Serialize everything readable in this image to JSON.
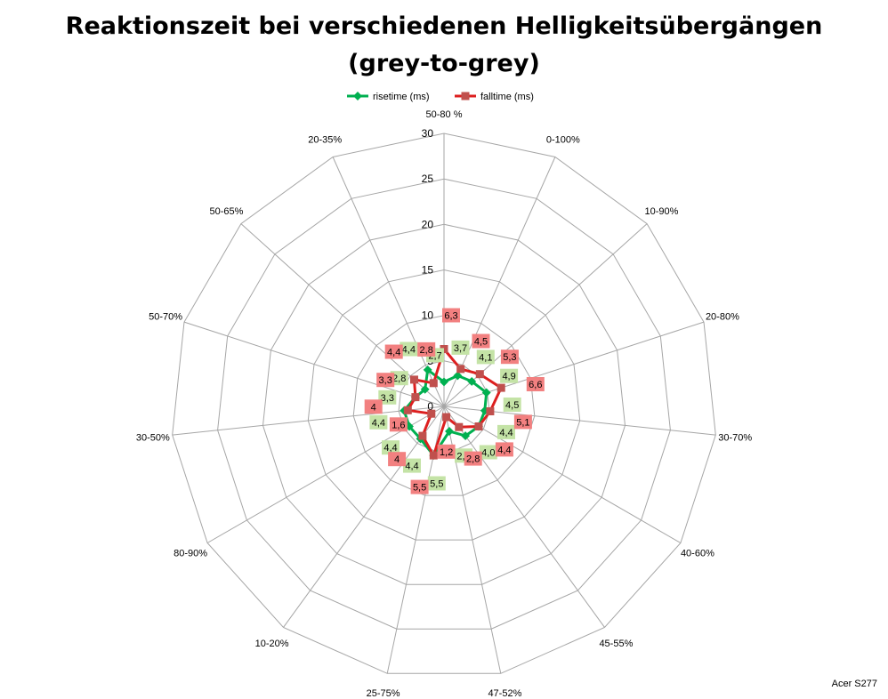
{
  "chart_data": {
    "type": "radar",
    "title": "Reaktionszeit bei verschiedenen Helligkeitsübergängen",
    "subtitle": "(grey-to-grey)",
    "categories": [
      "50-80 %",
      "0-100%",
      "10-90%",
      "20-80%",
      "30-70%",
      "40-60%",
      "45-55%",
      "47-52%",
      "25-75%",
      "10-20%",
      "80-90%",
      "30-50%",
      "50-70%",
      "50-65%",
      "20-35%"
    ],
    "rlim": [
      0,
      30
    ],
    "ticks": [
      "0",
      "5",
      "10",
      "15",
      "20",
      "25",
      "30"
    ],
    "tick_values": [
      0,
      5,
      10,
      15,
      20,
      25,
      30
    ],
    "grid": true,
    "legend_position": "top",
    "series": [
      {
        "name": "risetime (ms)",
        "color": "#00b050",
        "marker": "diamond",
        "label_color": "#c4e3a6",
        "values": [
          2.7,
          3.7,
          4.1,
          4.9,
          4.5,
          4.4,
          4.0,
          2.8,
          5.5,
          4.4,
          4.4,
          4.4,
          3.3,
          2.8,
          4.4
        ],
        "labels": [
          "2,7",
          "3,7",
          "4,1",
          "4,9",
          "4,5",
          "4,4",
          "4,0",
          "2,8",
          "5,5",
          "4,4",
          "4,4",
          "4,4",
          "3,3",
          "2,8",
          "4,4"
        ]
      },
      {
        "name": "falltime (ms)",
        "color": "#dd1f1f",
        "marker": "square",
        "label_color": "#f28080",
        "values": [
          6.3,
          4.5,
          5.3,
          6.6,
          5.1,
          4.4,
          2.8,
          1.2,
          5.5,
          4.0,
          1.6,
          4.0,
          3.3,
          4.4,
          2.8
        ],
        "labels": [
          "6,3",
          "4,5",
          "5,3",
          "6,6",
          "5,1",
          "4,4",
          "2,8",
          "1,2",
          "5,5",
          "4",
          "1,6",
          "4",
          "3,3",
          "4,4",
          "2,8"
        ]
      }
    ]
  },
  "footer": {
    "text": "Acer S277"
  }
}
